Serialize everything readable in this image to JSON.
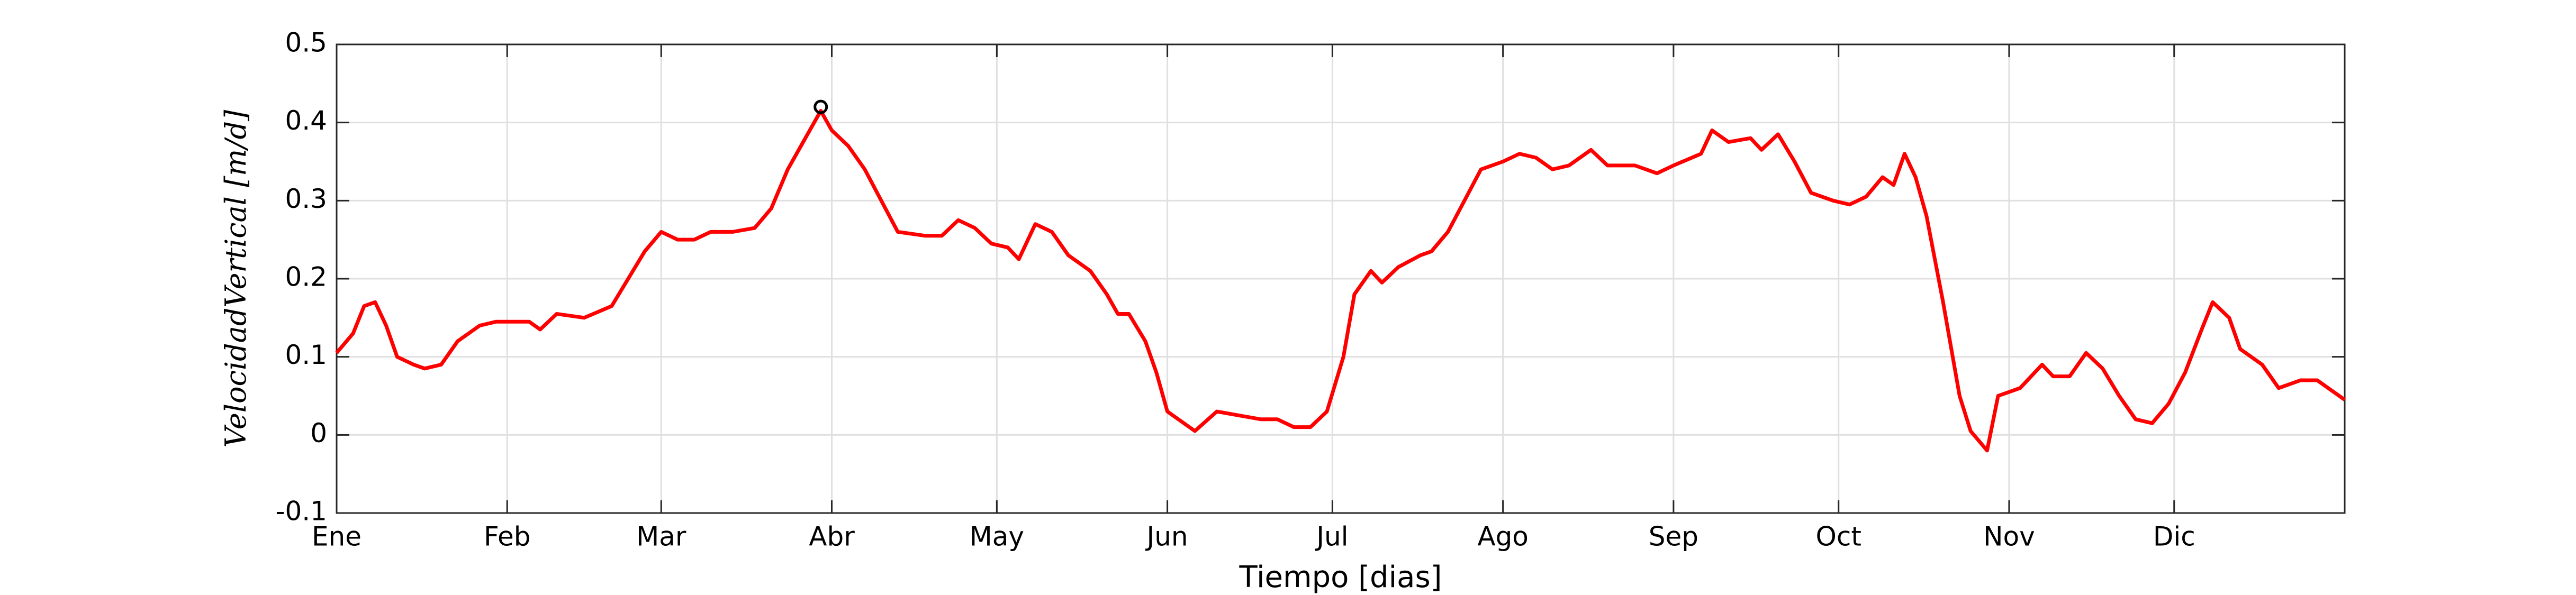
{
  "chart_data": {
    "type": "line",
    "xlabel": "Tiempo [dias]",
    "ylabel": "VelocidadVertical [m/d]",
    "x": [
      1,
      4,
      6,
      8,
      10,
      12,
      15,
      17,
      20,
      23,
      27,
      30,
      36,
      38,
      41,
      46,
      51,
      54,
      57,
      60,
      63,
      66,
      69,
      73,
      77,
      80,
      83,
      87,
      89,
      91,
      94,
      97,
      100,
      103,
      108,
      111,
      114,
      117,
      120,
      123,
      125,
      128,
      131,
      134,
      138,
      141,
      143,
      145,
      148,
      150,
      152,
      154,
      157,
      161,
      165,
      169,
      172,
      175,
      178,
      181,
      184,
      186,
      189,
      191,
      194,
      198,
      200,
      203,
      206,
      209,
      213,
      216,
      219,
      222,
      225,
      229,
      232,
      237,
      241,
      244,
      249,
      251,
      254,
      258,
      260,
      263,
      266,
      269,
      273,
      276,
      279,
      282,
      284,
      286,
      288,
      290,
      293,
      296,
      298,
      301,
      303,
      307,
      311,
      313,
      316,
      319,
      322,
      325,
      328,
      331,
      334,
      337,
      340,
      342,
      345,
      347,
      351,
      354,
      358,
      361,
      366
    ],
    "series": [
      {
        "color": "#ff0000",
        "values": [
          0.105,
          0.13,
          0.165,
          0.17,
          0.14,
          0.1,
          0.09,
          0.085,
          0.09,
          0.12,
          0.14,
          0.145,
          0.145,
          0.135,
          0.155,
          0.15,
          0.165,
          0.2,
          0.235,
          0.26,
          0.25,
          0.25,
          0.26,
          0.26,
          0.265,
          0.29,
          0.34,
          0.39,
          0.415,
          0.39,
          0.37,
          0.34,
          0.3,
          0.26,
          0.255,
          0.255,
          0.275,
          0.265,
          0.245,
          0.24,
          0.225,
          0.27,
          0.26,
          0.23,
          0.21,
          0.18,
          0.155,
          0.155,
          0.12,
          0.08,
          0.03,
          0.02,
          0.005,
          0.03,
          0.025,
          0.02,
          0.02,
          0.01,
          0.01,
          0.03,
          0.1,
          0.18,
          0.21,
          0.195,
          0.215,
          0.23,
          0.235,
          0.26,
          0.3,
          0.34,
          0.35,
          0.36,
          0.355,
          0.34,
          0.345,
          0.365,
          0.345,
          0.345,
          0.335,
          0.345,
          0.36,
          0.39,
          0.375,
          0.38,
          0.365,
          0.385,
          0.35,
          0.31,
          0.3,
          0.295,
          0.305,
          0.33,
          0.32,
          0.36,
          0.33,
          0.28,
          0.17,
          0.05,
          0.005,
          -0.02,
          0.05,
          0.06,
          0.09,
          0.075,
          0.075,
          0.105,
          0.085,
          0.05,
          0.02,
          0.015,
          0.04,
          0.08,
          0.135,
          0.17,
          0.15,
          0.11,
          0.09,
          0.06,
          0.07,
          0.07,
          0.045
        ]
      }
    ],
    "marker": {
      "x": 89,
      "y": 0.42,
      "color": "#000000"
    },
    "xlim": [
      1,
      366
    ],
    "xticks": [
      {
        "value": 1,
        "label": "Ene"
      },
      {
        "value": 32,
        "label": "Feb"
      },
      {
        "value": 60,
        "label": "Mar"
      },
      {
        "value": 91,
        "label": "Abr"
      },
      {
        "value": 121,
        "label": "May"
      },
      {
        "value": 152,
        "label": "Jun"
      },
      {
        "value": 182,
        "label": "Jul"
      },
      {
        "value": 213,
        "label": "Ago"
      },
      {
        "value": 244,
        "label": "Sep"
      },
      {
        "value": 274,
        "label": "Oct"
      },
      {
        "value": 305,
        "label": "Nov"
      },
      {
        "value": 335,
        "label": "Dic"
      }
    ],
    "ylim": [
      -0.1,
      0.5
    ],
    "yticks": [
      -0.1,
      0,
      0.1,
      0.2,
      0.3,
      0.4,
      0.5
    ],
    "grid": true
  }
}
